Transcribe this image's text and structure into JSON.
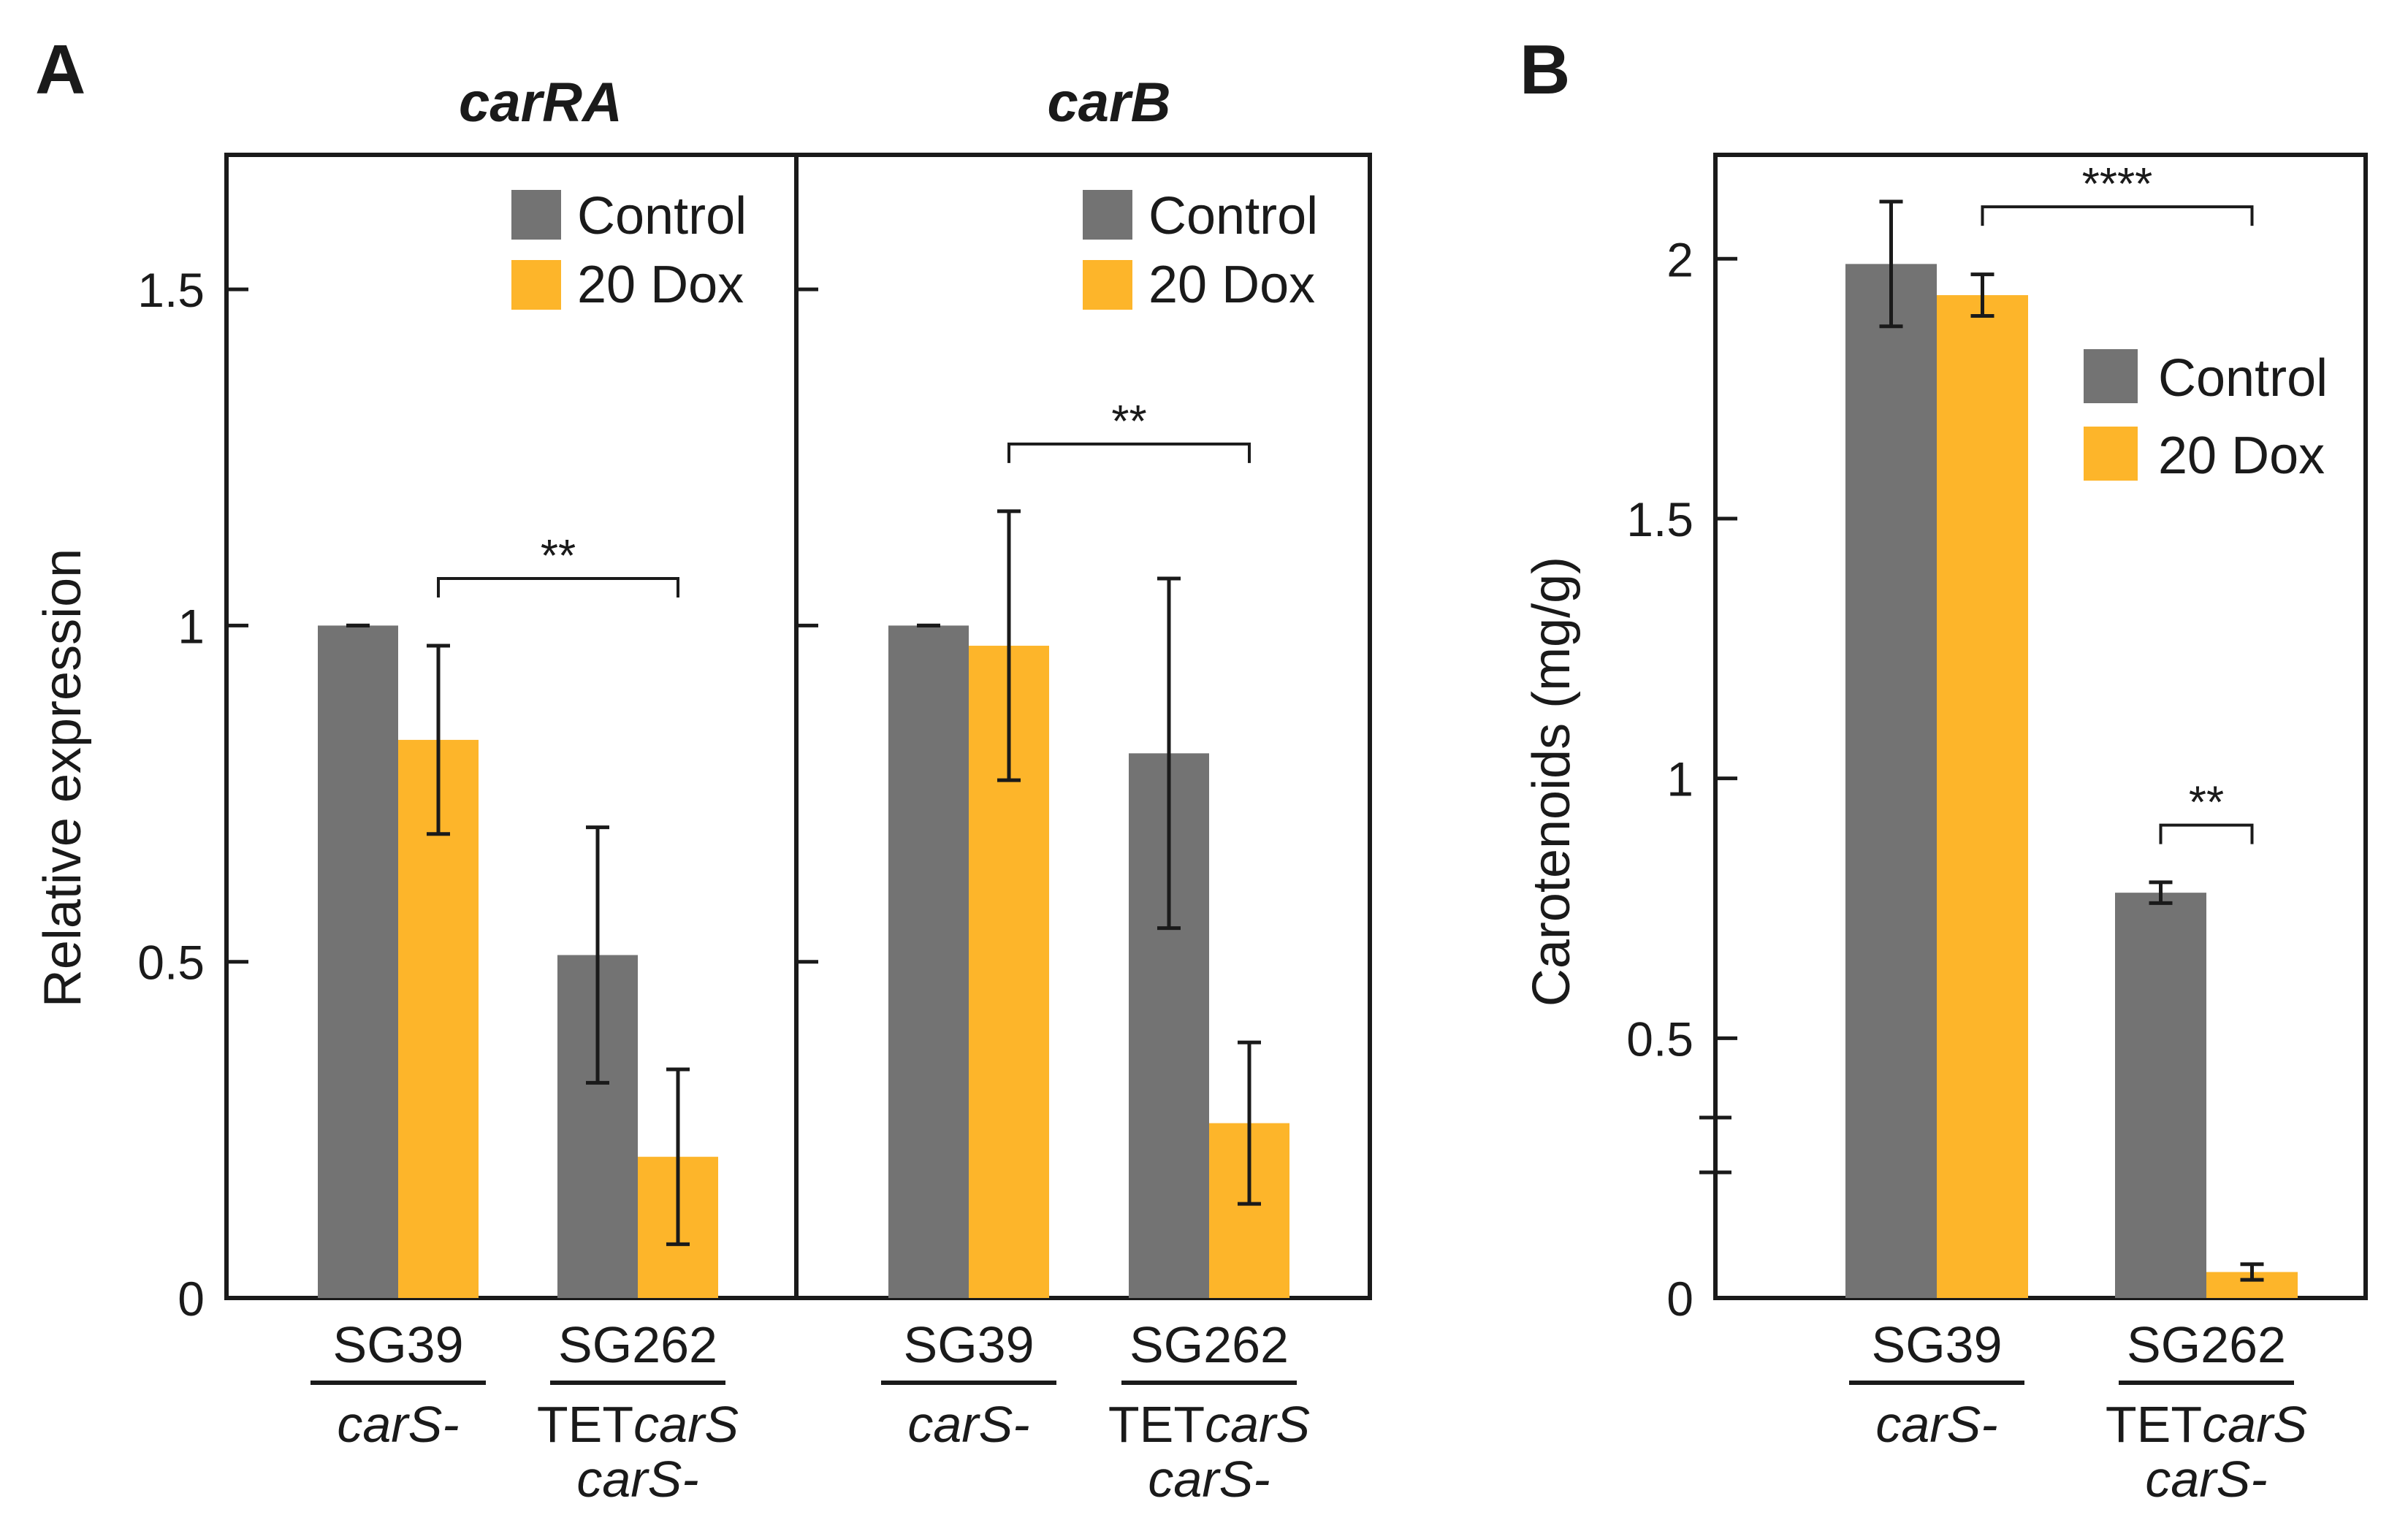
{
  "figure": {
    "panel_a_label": "A",
    "panel_b_label": "B"
  },
  "colors": {
    "control": "#737373",
    "dox": "#fdb52a",
    "axis": "#1a1a1a"
  },
  "legend": {
    "control": "Control",
    "dox": "20 Dox"
  },
  "groups": [
    {
      "name": "SG39",
      "genotype_lines": [
        [
          {
            "text": "carS-",
            "italic": true
          }
        ]
      ]
    },
    {
      "name": "SG262",
      "genotype_lines": [
        [
          {
            "text": "TET",
            "italic": false
          },
          {
            "text": "carS",
            "italic": true
          }
        ],
        [
          {
            "text": "carS-",
            "italic": true
          }
        ]
      ]
    }
  ],
  "chart_data": [
    {
      "type": "bar",
      "panel": "A",
      "title": "carRA",
      "ylabel": "Relative expression",
      "ylim": [
        0,
        1.7
      ],
      "yticks": [
        0,
        0.5,
        1,
        1.5
      ],
      "ytick_labels": [
        "0",
        "0.5",
        "1",
        "1.5"
      ],
      "categories": [
        "SG39",
        "SG262"
      ],
      "series": [
        {
          "name": "Control",
          "values": [
            1.0,
            0.51
          ],
          "errors": [
            0.0,
            0.19
          ]
        },
        {
          "name": "20 Dox",
          "values": [
            0.83,
            0.21
          ],
          "errors": [
            0.14,
            0.13
          ]
        }
      ],
      "significance": [
        {
          "label": "**",
          "from": "SG39 20 Dox",
          "to": "SG262 20 Dox",
          "level": 1.07
        }
      ],
      "legend_position": "top-right"
    },
    {
      "type": "bar",
      "panel": "A",
      "title": "carB",
      "ylabel": "Relative expression",
      "ylim": [
        0,
        1.7
      ],
      "yticks": [
        0,
        0.5,
        1,
        1.5
      ],
      "ytick_labels": [
        "0",
        "0.5",
        "1",
        "1.5"
      ],
      "categories": [
        "SG39",
        "SG262"
      ],
      "series": [
        {
          "name": "Control",
          "values": [
            1.0,
            0.81
          ],
          "errors": [
            0.0,
            0.26
          ]
        },
        {
          "name": "20 Dox",
          "values": [
            0.97,
            0.26
          ],
          "errors": [
            0.2,
            0.12
          ]
        }
      ],
      "significance": [
        {
          "label": "**",
          "from": "SG39 20 Dox",
          "to": "SG262 20 Dox",
          "level": 1.27
        }
      ],
      "legend_position": "top-right"
    },
    {
      "type": "bar",
      "panel": "B",
      "title": "",
      "ylabel": "Carotenoids (mg/g)",
      "ylim": [
        0,
        2.2
      ],
      "yticks": [
        0,
        0.5,
        1,
        1.5,
        2
      ],
      "ytick_labels": [
        "0",
        "0.5",
        "1",
        "1.5",
        "2"
      ],
      "categories": [
        "SG39",
        "SG262"
      ],
      "series": [
        {
          "name": "Control",
          "values": [
            1.99,
            0.78
          ],
          "errors": [
            0.12,
            0.02
          ]
        },
        {
          "name": "20 Dox",
          "values": [
            1.93,
            0.05
          ],
          "errors": [
            0.04,
            0.015
          ]
        }
      ],
      "significance": [
        {
          "label": "****",
          "from": "SG39 20 Dox",
          "to": "SG262 20 Dox",
          "level": 2.1
        },
        {
          "label": "**",
          "from": "SG262 Control",
          "to": "SG262 20 Dox",
          "level": 0.91
        }
      ],
      "legend_position": "top-right"
    }
  ]
}
